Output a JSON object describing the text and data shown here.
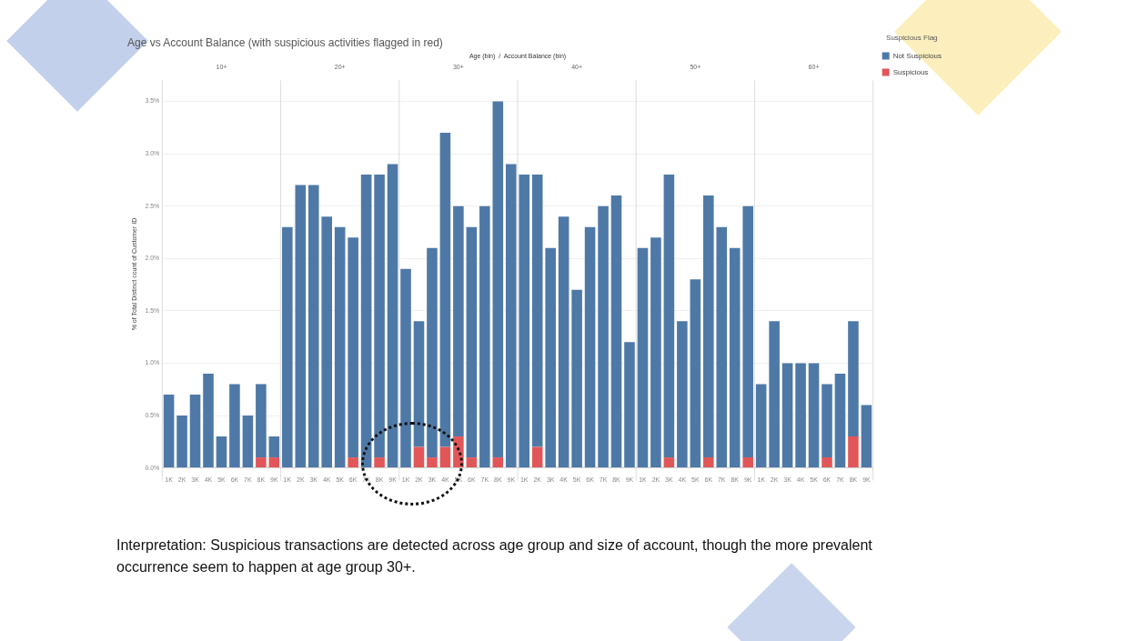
{
  "chart_data": {
    "type": "bar",
    "stacked": true,
    "title": "Age vs Account Balance (with suspicious activities flagged in red)",
    "xlabel": "Age (bin)  /  Account Balance (bin)",
    "ylabel": "% of Total Distinct count of Customer ID",
    "legend_title": "Suspicious Flag",
    "legend": "right",
    "categories": [
      "1K",
      "2K",
      "3K",
      "4K",
      "5K",
      "6K",
      "7K",
      "8K",
      "9K",
      "1K",
      "2K",
      "3K",
      "4K",
      "5K",
      "6K",
      "7K",
      "8K",
      "9K",
      "1K",
      "2K",
      "3K",
      "4K",
      "5K",
      "6K",
      "7K",
      "8K",
      "9K",
      "1K",
      "2K",
      "3K",
      "4K",
      "5K",
      "6K",
      "7K",
      "8K",
      "9K",
      "1K",
      "2K",
      "3K",
      "4K",
      "5K",
      "6K",
      "7K",
      "8K",
      "9K",
      "1K",
      "2K",
      "3K",
      "4K",
      "5K",
      "6K",
      "7K",
      "8K",
      "9K"
    ],
    "series": [
      {
        "name": "Suspicious",
        "color": "#e15759",
        "values": [
          0,
          0,
          0,
          0,
          0,
          0,
          0,
          0.1,
          0.1,
          0,
          0,
          0,
          0,
          0,
          0.1,
          0,
          0.1,
          0,
          0,
          0.2,
          0.1,
          0.2,
          0.3,
          0.1,
          0,
          0.1,
          0,
          0,
          0.2,
          0,
          0,
          0,
          0,
          0,
          0,
          0,
          0,
          0,
          0.1,
          0,
          0,
          0.1,
          0,
          0,
          0.1,
          0,
          0,
          0,
          0,
          0,
          0.1,
          0,
          0.3,
          0
        ]
      },
      {
        "name": "Not Suspicious",
        "color": "#4e79a7",
        "values": [
          0.7,
          0.5,
          0.7,
          0.9,
          0.3,
          0.8,
          0.5,
          0.7,
          0.2,
          2.3,
          2.7,
          2.7,
          2.4,
          2.3,
          2.1,
          2.8,
          2.7,
          2.9,
          1.9,
          1.2,
          2.0,
          3.0,
          2.2,
          2.2,
          2.5,
          3.4,
          2.9,
          2.8,
          2.6,
          2.1,
          2.4,
          1.7,
          2.3,
          2.5,
          2.6,
          1.2,
          2.1,
          2.2,
          2.7,
          1.4,
          1.8,
          2.5,
          2.3,
          2.1,
          2.4,
          0.8,
          1.4,
          1.0,
          1.0,
          1.0,
          0.7,
          0.9,
          1.1,
          0.6
        ]
      }
    ],
    "ylim": [
      0,
      3.7
    ],
    "yticks": [
      {
        "value": 0,
        "label": "0.0%"
      },
      {
        "value": 0.5,
        "label": "0.5%"
      },
      {
        "value": 1,
        "label": "1.0%"
      },
      {
        "value": 1.5,
        "label": "1.5%"
      },
      {
        "value": 2,
        "label": "2.0%"
      },
      {
        "value": 2.5,
        "label": "2.5%"
      },
      {
        "value": 3,
        "label": "3.0%"
      },
      {
        "value": 3.5,
        "label": "3.5%"
      }
    ],
    "grid": "y",
    "annotations": [
      "10+",
      "20+",
      "30+",
      "40+",
      "50+",
      "60+",
      "Interpretation: Suspicious transactions are detected across age group and size of account, though the more prevalent occurrence seem to happen at age group 30+."
    ]
  }
}
